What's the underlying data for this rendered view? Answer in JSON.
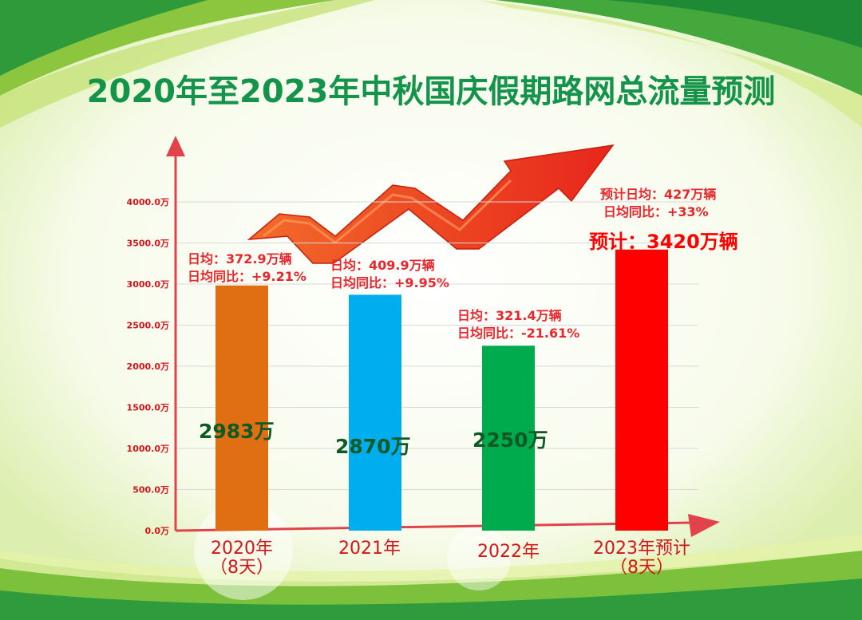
{
  "title": "2020年至2023年中秋国庆假期路网总流量预测",
  "colors": {
    "title": "#14934a",
    "axis": "#e2434b",
    "annotation": "#e8262b",
    "value_label": "#0d5a24"
  },
  "chart_data": {
    "type": "bar",
    "categories": [
      "2020年\n（8天）",
      "2021年",
      "2022年",
      "2023年预计\n（8天）"
    ],
    "values": [
      2983,
      2870,
      2250,
      3420
    ],
    "colors": [
      "#e06e12",
      "#00aeef",
      "#00ab4e",
      "#ff0000"
    ],
    "ylim": [
      0,
      4000
    ],
    "yticks": [
      {
        "v": 0,
        "label": "0.0万"
      },
      {
        "v": 500,
        "label": "500.0万"
      },
      {
        "v": 1000,
        "label": "1000.0万"
      },
      {
        "v": 1500,
        "label": "1500.0万"
      },
      {
        "v": 2000,
        "label": "2000.0万"
      },
      {
        "v": 2500,
        "label": "2500.0万"
      },
      {
        "v": 3000,
        "label": "3000.0万"
      },
      {
        "v": 3500,
        "label": "3500.0万"
      },
      {
        "v": 4000,
        "label": "4000.0万"
      }
    ],
    "grid": true,
    "value_labels": [
      "2983万",
      "2870万",
      "2250万",
      "预计：3420万辆"
    ],
    "annotations": [
      [
        "日均：372.9万辆",
        "日均同比：+9.21%"
      ],
      [
        "日均：409.9万辆",
        "日均同比：+9.95%"
      ],
      [
        "日均：321.4万辆",
        "日均同比：-21.61%"
      ],
      [
        "预计日均：427万辆",
        "日均同比：+33%"
      ]
    ]
  }
}
